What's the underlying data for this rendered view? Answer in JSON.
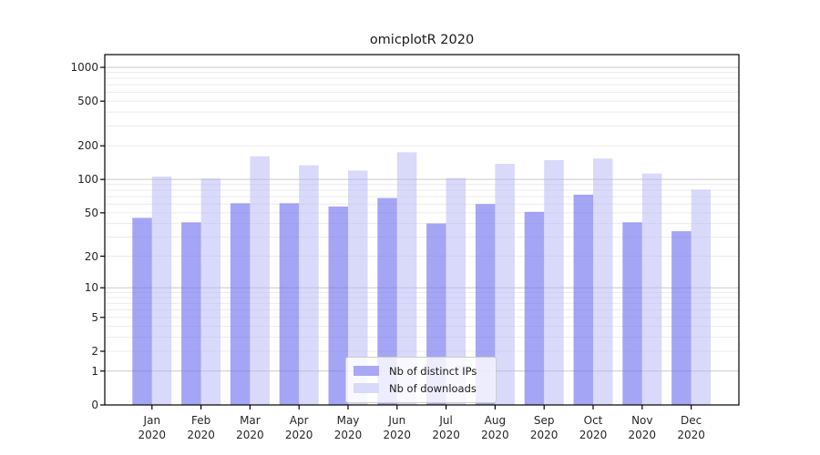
{
  "chart_data": {
    "type": "bar",
    "title": "omicplotR 2020",
    "categories": [
      "Jan",
      "Feb",
      "Mar",
      "Apr",
      "May",
      "Jun",
      "Jul",
      "Aug",
      "Sep",
      "Oct",
      "Nov",
      "Dec"
    ],
    "x_sublabel": "2020",
    "series": [
      {
        "name": "Nb of distinct IPs",
        "color": "#a8a8f4",
        "fill": "rgba(110,110,240,0.62)",
        "values": [
          45,
          41,
          61,
          61,
          57,
          68,
          40,
          60,
          51,
          73,
          41,
          34
        ]
      },
      {
        "name": "Nb of downloads",
        "color": "#d9d9fa",
        "fill": "rgba(180,180,245,0.50)",
        "values": [
          106,
          102,
          161,
          134,
          120,
          175,
          103,
          138,
          149,
          154,
          113,
          81
        ]
      }
    ],
    "y_ticks": [
      0,
      1,
      2,
      5,
      10,
      20,
      50,
      100,
      200,
      500,
      1000
    ],
    "yscale": "log1p",
    "ylim": [
      0,
      1000
    ],
    "grid": true,
    "grid_major_color": "#c9c9c9",
    "grid_minor_color": "#ececec",
    "axis_color": "#000000",
    "legend_position": "bottom-center"
  }
}
